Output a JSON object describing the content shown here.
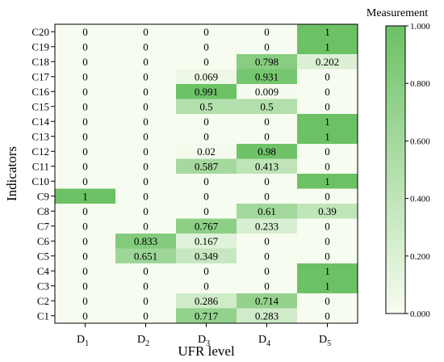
{
  "chart_data": {
    "type": "heatmap",
    "xlabel": "UFR level",
    "ylabel": "Indicators",
    "x_categories": [
      "D1",
      "D2",
      "D3",
      "D4",
      "D5"
    ],
    "y_categories": [
      "C20",
      "C19",
      "C18",
      "C17",
      "C16",
      "C15",
      "C14",
      "C13",
      "C12",
      "C11",
      "C10",
      "C9",
      "C8",
      "C7",
      "C6",
      "C5",
      "C4",
      "C3",
      "C2",
      "C1"
    ],
    "values": [
      [
        "0",
        "0",
        "0",
        "0",
        "1"
      ],
      [
        "0",
        "0",
        "0",
        "0",
        "1"
      ],
      [
        "0",
        "0",
        "0",
        "0.798",
        "0.202"
      ],
      [
        "0",
        "0",
        "0.069",
        "0.931",
        "0"
      ],
      [
        "0",
        "0",
        "0.991",
        "0.009",
        "0"
      ],
      [
        "0",
        "0",
        "0.5",
        "0.5",
        "0"
      ],
      [
        "0",
        "0",
        "0",
        "0",
        "1"
      ],
      [
        "0",
        "0",
        "0",
        "0",
        "1"
      ],
      [
        "0",
        "0",
        "0.02",
        "0.98",
        "0"
      ],
      [
        "0",
        "0",
        "0.587",
        "0.413",
        "0"
      ],
      [
        "0",
        "0",
        "0",
        "0",
        "1"
      ],
      [
        "1",
        "0",
        "0",
        "0",
        "0"
      ],
      [
        "0",
        "0",
        "0",
        "0.61",
        "0.39"
      ],
      [
        "0",
        "0",
        "0.767",
        "0.233",
        "0"
      ],
      [
        "0",
        "0.833",
        "0.167",
        "0",
        "0"
      ],
      [
        "0",
        "0.651",
        "0.349",
        "0",
        "0"
      ],
      [
        "0",
        "0",
        "0",
        "0",
        "1"
      ],
      [
        "0",
        "0",
        "0",
        "0",
        "1"
      ],
      [
        "0",
        "0",
        "0.286",
        "0.714",
        "0"
      ],
      [
        "0",
        "0",
        "0.717",
        "0.283",
        "0"
      ]
    ],
    "colorbar": {
      "title": "Measurement",
      "range": [
        0,
        1
      ],
      "tick_labels": [
        "0.000",
        "0.200",
        "0.400",
        "0.600",
        "0.800",
        "1.000"
      ],
      "color_low": "#f7fcf0",
      "color_high": "#6cc165"
    }
  }
}
